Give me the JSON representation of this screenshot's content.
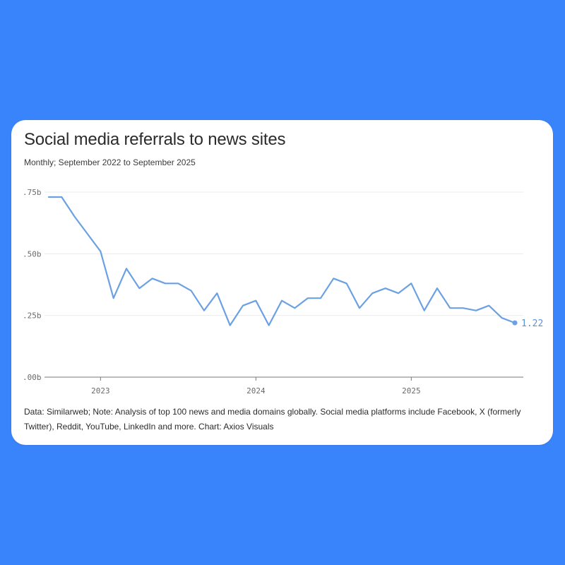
{
  "chart_data": {
    "type": "line",
    "title": "Social media referrals to news sites",
    "subtitle": "Monthly; September 2022 to September 2025",
    "x_start": "2022-09",
    "x_end": "2025-09",
    "x": [
      "2022-09",
      "2022-10",
      "2022-11",
      "2022-12",
      "2023-01",
      "2023-02",
      "2023-03",
      "2023-04",
      "2023-05",
      "2023-06",
      "2023-07",
      "2023-08",
      "2023-09",
      "2023-10",
      "2023-11",
      "2023-12",
      "2024-01",
      "2024-02",
      "2024-03",
      "2024-04",
      "2024-05",
      "2024-06",
      "2024-07",
      "2024-08",
      "2024-09",
      "2024-10",
      "2024-11",
      "2024-12",
      "2025-01",
      "2025-02",
      "2025-03",
      "2025-04",
      "2025-05",
      "2025-06",
      "2025-07",
      "2025-08",
      "2025-09"
    ],
    "series": [
      {
        "values": [
          1.73,
          1.73,
          1.65,
          1.58,
          1.51,
          1.32,
          1.44,
          1.36,
          1.4,
          1.38,
          1.38,
          1.35,
          1.27,
          1.34,
          1.21,
          1.29,
          1.31,
          1.21,
          1.31,
          1.28,
          1.32,
          1.32,
          1.4,
          1.38,
          1.28,
          1.34,
          1.36,
          1.34,
          1.38,
          1.27,
          1.36,
          1.28,
          1.28,
          1.27,
          1.29,
          1.24,
          1.22
        ],
        "color": "#6ba1e3"
      }
    ],
    "end_label": "1.22",
    "y_ticks": [
      1.0,
      1.25,
      1.5,
      1.75
    ],
    "y_tick_labels": [
      ".00b",
      ".25b",
      ".50b",
      ".75b"
    ],
    "ylim": [
      1.0,
      1.75
    ],
    "x_ticks": [
      "2023-01",
      "2024-01",
      "2025-01"
    ],
    "x_tick_labels": [
      "2023",
      "2024",
      "2025"
    ],
    "xlabel": "",
    "ylabel": "",
    "grid": true,
    "legend": "none"
  },
  "footnote": "Data: Similarweb; Note: Analysis of top 100 news and media domains globally. Social media platforms include Facebook, X (formerly Twitter), Reddit, YouTube, LinkedIn and more. Chart: Axios Visuals"
}
